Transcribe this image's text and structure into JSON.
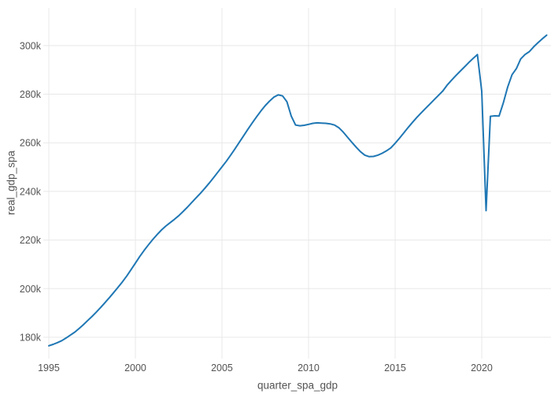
{
  "figure": {
    "y_axis": {
      "title": "real_gdp_spa",
      "tick_labels": [
        "180k",
        "200k",
        "220k",
        "240k",
        "260k",
        "280k",
        "300k"
      ],
      "tick_values": [
        180000,
        200000,
        220000,
        240000,
        260000,
        280000,
        300000
      ]
    },
    "x_axis": {
      "title": "quarter_spa_gdp",
      "tick_labels": [
        "1995",
        "2000",
        "2005",
        "2010",
        "2015",
        "2020"
      ],
      "tick_values": [
        1995,
        2000,
        2005,
        2010,
        2015,
        2020
      ]
    },
    "colors": {
      "line": "#1f77b4",
      "grid": "#e8e8e8",
      "tick_text": "#545454",
      "axis_title_text": "#545454",
      "background": "#ffffff"
    }
  },
  "chart_data": {
    "type": "line",
    "title": "",
    "xlabel": "quarter_spa_gdp",
    "ylabel": "real_gdp_spa",
    "legend": "none",
    "grid": true,
    "line_color": "#1f77b4",
    "xlim": [
      1994.682,
      2024.0
    ],
    "ylim": [
      171250,
      315500
    ],
    "x_quarters": [
      "1995-Q1",
      "1995-Q2",
      "1995-Q3",
      "1995-Q4",
      "1996-Q1",
      "1996-Q2",
      "1996-Q3",
      "1996-Q4",
      "1997-Q1",
      "1997-Q2",
      "1997-Q3",
      "1997-Q4",
      "1998-Q1",
      "1998-Q2",
      "1998-Q3",
      "1998-Q4",
      "1999-Q1",
      "1999-Q2",
      "1999-Q3",
      "1999-Q4",
      "2000-Q1",
      "2000-Q2",
      "2000-Q3",
      "2000-Q4",
      "2001-Q1",
      "2001-Q2",
      "2001-Q3",
      "2001-Q4",
      "2002-Q1",
      "2002-Q2",
      "2002-Q3",
      "2002-Q4",
      "2003-Q1",
      "2003-Q2",
      "2003-Q3",
      "2003-Q4",
      "2004-Q1",
      "2004-Q2",
      "2004-Q3",
      "2004-Q4",
      "2005-Q1",
      "2005-Q2",
      "2005-Q3",
      "2005-Q4",
      "2006-Q1",
      "2006-Q2",
      "2006-Q3",
      "2006-Q4",
      "2007-Q1",
      "2007-Q2",
      "2007-Q3",
      "2007-Q4",
      "2008-Q1",
      "2008-Q2",
      "2008-Q3",
      "2008-Q4",
      "2009-Q1",
      "2009-Q2",
      "2009-Q3",
      "2009-Q4",
      "2010-Q1",
      "2010-Q2",
      "2010-Q3",
      "2010-Q4",
      "2011-Q1",
      "2011-Q2",
      "2011-Q3",
      "2011-Q4",
      "2012-Q1",
      "2012-Q2",
      "2012-Q3",
      "2012-Q4",
      "2013-Q1",
      "2013-Q2",
      "2013-Q3",
      "2013-Q4",
      "2014-Q1",
      "2014-Q2",
      "2014-Q3",
      "2014-Q4",
      "2015-Q1",
      "2015-Q2",
      "2015-Q3",
      "2015-Q4",
      "2016-Q1",
      "2016-Q2",
      "2016-Q3",
      "2016-Q4",
      "2017-Q1",
      "2017-Q2",
      "2017-Q3",
      "2017-Q4",
      "2018-Q1",
      "2018-Q2",
      "2018-Q3",
      "2018-Q4",
      "2019-Q1",
      "2019-Q2",
      "2019-Q3",
      "2019-Q4",
      "2020-Q1",
      "2020-Q2",
      "2020-Q3",
      "2020-Q4",
      "2021-Q1",
      "2021-Q2",
      "2021-Q3",
      "2021-Q4",
      "2022-Q1",
      "2022-Q2",
      "2022-Q3",
      "2022-Q4",
      "2023-Q1",
      "2023-Q2",
      "2023-Q3",
      "2023-Q4"
    ],
    "values": [
      176500,
      177100,
      177800,
      178600,
      179700,
      180900,
      182100,
      183600,
      185200,
      186900,
      188600,
      190400,
      192300,
      194300,
      196300,
      198400,
      200600,
      202800,
      205200,
      207800,
      210500,
      213200,
      215700,
      218000,
      220200,
      222200,
      224100,
      225700,
      227100,
      228500,
      230000,
      231700,
      233500,
      235400,
      237300,
      239200,
      241200,
      243300,
      245500,
      247800,
      250100,
      252400,
      254900,
      257500,
      260200,
      262900,
      265600,
      268200,
      270700,
      273100,
      275300,
      277200,
      278800,
      279700,
      279300,
      276900,
      271000,
      267300,
      267000,
      267200,
      267600,
      268000,
      268200,
      268100,
      268000,
      267800,
      267300,
      266200,
      264400,
      262300,
      260200,
      258200,
      256300,
      254900,
      254300,
      254400,
      254900,
      255700,
      256700,
      257900,
      259800,
      261900,
      264100,
      266300,
      268400,
      270400,
      272300,
      274100,
      275900,
      277700,
      279500,
      281300,
      283700,
      285700,
      287600,
      289400,
      291200,
      293000,
      294700,
      296300,
      281200,
      232100,
      270900,
      271100,
      271000,
      276500,
      283000,
      288000,
      290500,
      294500,
      296300,
      297500,
      299500,
      301200,
      302800,
      304300
    ]
  }
}
